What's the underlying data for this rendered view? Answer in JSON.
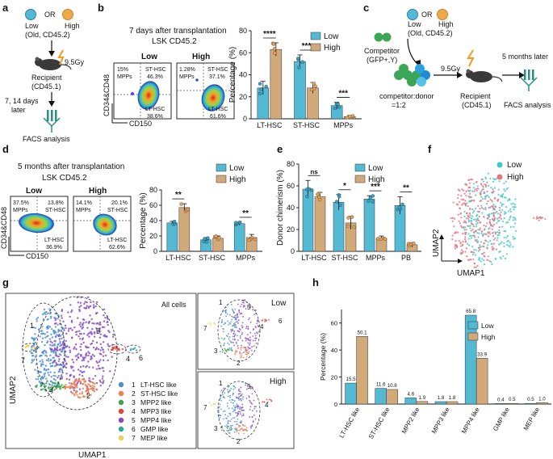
{
  "colors": {
    "low": "#54b9d3",
    "high": "#d2aa79",
    "lowDot": "#35a2c4",
    "highDot": "#e7a35a",
    "cl1": "#4f8fd0",
    "cl2": "#ee7f4d",
    "cl3": "#3ba14f",
    "cl4": "#e0413b",
    "cl5": "#8747c6",
    "cl6": "#29a79b",
    "cl7": "#e9cf52"
  },
  "panel_labels": {
    "a": "a",
    "b": "b",
    "c": "c",
    "d": "d",
    "e": "e",
    "f": "f",
    "g": "g",
    "h": "h"
  },
  "panel_a": {
    "legend_low": "Low",
    "legend_or": "OR",
    "legend_high": "High",
    "donor": "(Old, CD45.2)",
    "dose": "9.5Gy",
    "recipient": "Recipient",
    "recipient_marker": "(CD45.1)",
    "timing": "7, 14 days",
    "timing2": "later",
    "analysis": "FACS analysis"
  },
  "panel_b": {
    "title": "7 days after transplantation",
    "subtitle": "LSK CD45.2",
    "flow_low": {
      "title": "Low",
      "mpp": "15%",
      "mpp_label": "MPPs",
      "st": "ST-HSC",
      "st_val": "46.3%",
      "lt": "LT-HSC",
      "lt_val": "38.6%"
    },
    "flow_high": {
      "title": "High",
      "mpp": "1.28%",
      "mpp_label": "MPPs",
      "st": "ST-HSC",
      "st_val": "37.1%",
      "lt": "LT-HSC",
      "lt_val": "61.6%"
    },
    "ylabel_flow": "CD34&CD48",
    "xlabel_flow": "CD150"
  },
  "panel_c": {
    "legend_low": "Low",
    "legend_or": "OR",
    "legend_high": "High",
    "donor": "(Old, CD45.2)",
    "competitor": "Competitor",
    "competitor_marker": "(GFP+,Y)",
    "ratio": "competitor:donor",
    "ratio2": "=1:2",
    "dose": "9.5Gy",
    "recipient": "Recipient",
    "recipient_marker": "(CD45.1)",
    "timing": "5 months later",
    "analysis": "FACS analysis"
  },
  "panel_d": {
    "title": "5 months after transplantation",
    "subtitle": "LSK CD45.2",
    "flow_low": {
      "title": "Low",
      "mpp": "37.5%",
      "mpp_label": "MPPs",
      "st": "ST-HSC",
      "st_val": "13.8%",
      "lt": "LT-HSC",
      "lt_val": "36.9%"
    },
    "flow_high": {
      "title": "High",
      "mpp": "14.1%",
      "mpp_label": "MPPs",
      "st": "ST-HSC",
      "st_val": "20.1%",
      "lt": "LT-HSC",
      "lt_val": "62.6%"
    },
    "ylabel_flow": "CD34&CD48",
    "xlabel_flow": "CD150"
  },
  "panel_f": {
    "legend_low": "Low",
    "legend_high": "High",
    "xlabel": "UMAP1",
    "ylabel": "UMAP2"
  },
  "panel_g": {
    "main_title": "All cells",
    "xlabel": "UMAP1",
    "ylabel": "UMAP2",
    "low_title": "Low",
    "high_title": "High",
    "clusters": [
      {
        "num": "1",
        "name": "LT-HSC like"
      },
      {
        "num": "2",
        "name": "ST-HSC like"
      },
      {
        "num": "3",
        "name": "MPP2 like"
      },
      {
        "num": "4",
        "name": "MPP3 like"
      },
      {
        "num": "5",
        "name": "MPP4 like"
      },
      {
        "num": "6",
        "name": "GMP like"
      },
      {
        "num": "7",
        "name": "MEP like"
      }
    ]
  },
  "chart_data": [
    {
      "id": "b",
      "type": "bar",
      "categories": [
        "LT-HSC",
        "ST-HSC",
        "MPPs"
      ],
      "series": [
        {
          "name": "Low",
          "values": [
            28,
            52,
            12
          ]
        },
        {
          "name": "High",
          "values": [
            63,
            28,
            2
          ]
        }
      ],
      "errors": [
        [
          6,
          6,
          3
        ],
        [
          6,
          5,
          1
        ]
      ],
      "significance": [
        "****",
        "***",
        "***"
      ],
      "ylabel": "Percentage (%)",
      "ylim": [
        0,
        80
      ],
      "yticks": [
        0,
        20,
        40,
        60,
        80
      ],
      "legend": [
        "Low",
        "High"
      ]
    },
    {
      "id": "d",
      "type": "bar",
      "categories": [
        "LT-HSC",
        "ST-HSC",
        "MPPs"
      ],
      "series": [
        {
          "name": "Low",
          "values": [
            37,
            15,
            36
          ]
        },
        {
          "name": "High",
          "values": [
            57,
            17,
            18
          ]
        }
      ],
      "errors": [
        [
          2,
          3,
          2
        ],
        [
          5,
          3,
          4
        ]
      ],
      "significance": [
        "**",
        "",
        "**"
      ],
      "ylabel": "Percentage (%)",
      "ylim": [
        0,
        80
      ],
      "yticks": [
        0,
        20,
        40,
        60,
        80
      ],
      "legend": [
        "Low",
        "High"
      ]
    },
    {
      "id": "e",
      "type": "bar",
      "categories": [
        "LT-HSC",
        "ST-HSC",
        "MPPs",
        "PB"
      ],
      "series": [
        {
          "name": "Low",
          "values": [
            57,
            45,
            48,
            42
          ]
        },
        {
          "name": "High",
          "values": [
            50,
            26,
            12,
            6
          ]
        }
      ],
      "errors": [
        [
          8,
          7,
          3,
          8
        ],
        [
          4,
          6,
          2,
          2
        ]
      ],
      "significance": [
        "ns",
        "*",
        "***",
        "**"
      ],
      "ylabel": "Donor chimerism (%)",
      "ylim": [
        0,
        80
      ],
      "yticks": [
        0,
        20,
        40,
        60,
        80
      ],
      "legend": [
        "Low",
        "High"
      ]
    },
    {
      "id": "h",
      "type": "bar",
      "categories": [
        "LT-HSC like",
        "ST-HSC like",
        "MPP2 like",
        "MPP3 like",
        "MPP4 like",
        "GMP like",
        "MEP like"
      ],
      "series": [
        {
          "name": "Low",
          "values": [
            15.5,
            11.6,
            4.6,
            1.8,
            65.8,
            0.4,
            0.5
          ]
        },
        {
          "name": "High",
          "values": [
            50.1,
            10.8,
            1.9,
            1.8,
            33.9,
            0.5,
            1.0
          ]
        }
      ],
      "labels": [
        [
          "15.5",
          "11.6",
          "4.6",
          "1.8",
          "65.8",
          "0.4",
          "0.5"
        ],
        [
          "50.1",
          "10.8",
          "1.9",
          "1.8",
          "33.9",
          "0.5",
          "1.0"
        ]
      ],
      "ylabel": "Percentage (%)",
      "ylim": [
        0,
        70
      ],
      "yticks": [
        0,
        20,
        40,
        60
      ],
      "legend": [
        "Low",
        "High"
      ]
    }
  ]
}
